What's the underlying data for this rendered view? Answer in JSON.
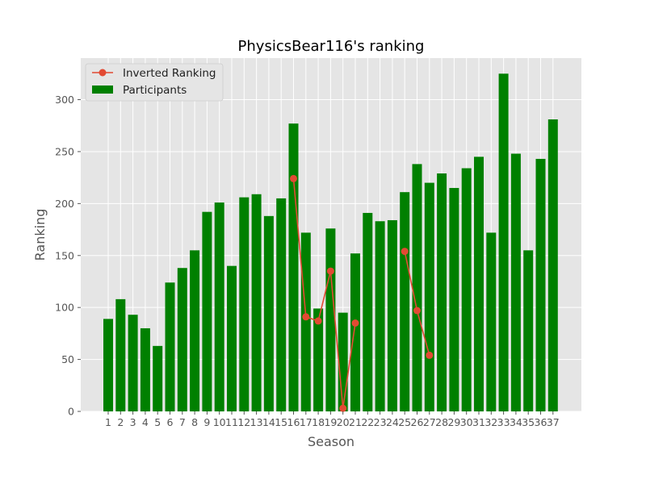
{
  "chart_data": {
    "type": "bar",
    "title": "PhysicsBear116's ranking",
    "xlabel": "Season",
    "ylabel": "Ranking",
    "categories": [
      "1",
      "2",
      "3",
      "4",
      "5",
      "6",
      "7",
      "8",
      "9",
      "10",
      "11",
      "12",
      "13",
      "14",
      "15",
      "16",
      "17",
      "18",
      "19",
      "20",
      "21",
      "22",
      "23",
      "24",
      "25",
      "26",
      "27",
      "28",
      "29",
      "30",
      "31",
      "32",
      "33",
      "34",
      "35",
      "36",
      "37"
    ],
    "ylim": [
      0,
      340
    ],
    "yticks": [
      0,
      50,
      100,
      150,
      200,
      250,
      300
    ],
    "grid": true,
    "legend_position": "top-left",
    "series": [
      {
        "name": "Participants",
        "kind": "bar",
        "color": "#008000",
        "values": [
          89,
          108,
          93,
          80,
          63,
          124,
          138,
          155,
          192,
          201,
          140,
          206,
          209,
          188,
          205,
          277,
          172,
          99,
          176,
          95,
          152,
          191,
          183,
          184,
          211,
          238,
          220,
          229,
          215,
          234,
          245,
          172,
          325,
          248,
          155,
          243,
          281
        ]
      },
      {
        "name": "Inverted Ranking",
        "kind": "line",
        "color": "#e24a33",
        "values": [
          null,
          null,
          null,
          null,
          null,
          null,
          null,
          null,
          null,
          null,
          null,
          null,
          null,
          null,
          null,
          224,
          91,
          87,
          135,
          3,
          85,
          null,
          null,
          null,
          154,
          97,
          54,
          null,
          null,
          null,
          null,
          null,
          null,
          null,
          null,
          null,
          null
        ]
      }
    ]
  },
  "colors": {
    "plot_background": "#e5e5e5",
    "grid": "#ffffff",
    "bar": "#008000",
    "line": "#e24a33"
  }
}
